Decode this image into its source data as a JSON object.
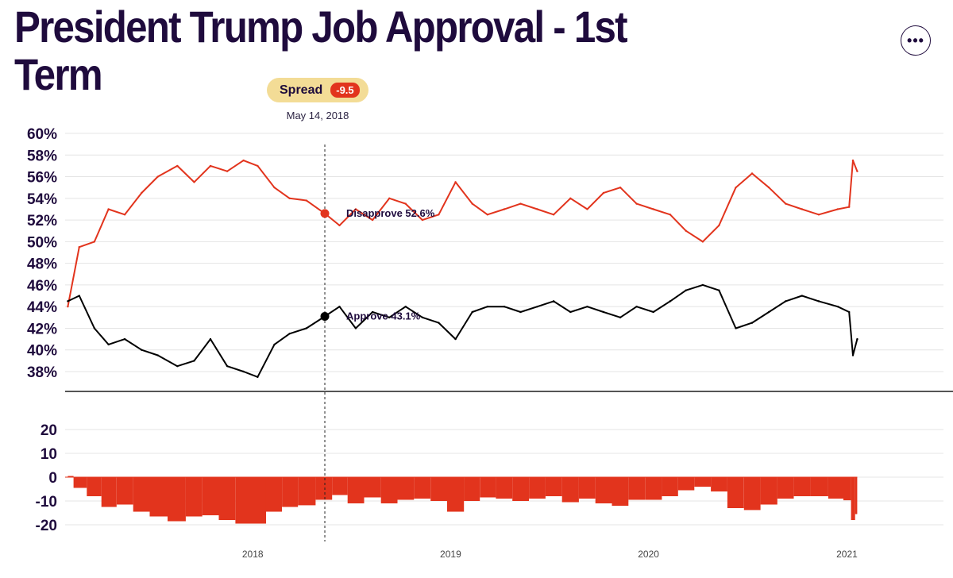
{
  "header": {
    "title": "President Trump Job Approval - 1st Term",
    "more_button_label": "•••",
    "spread_label": "Spread",
    "spread_value": "-9.5",
    "hover_date": "May 14, 2018"
  },
  "colors": {
    "disapprove": "#e2341d",
    "approve": "#000000",
    "spread_bar": "#e2341d",
    "spread_pill": "#f3dc96",
    "title": "#1f0b3d",
    "grid": "#e4e4e4"
  },
  "icons": {
    "more": "ellipsis-icon"
  },
  "chart_data": [
    {
      "type": "line",
      "title": "",
      "xlabel": "",
      "ylabel": "",
      "ylim": [
        36,
        60
      ],
      "y_ticks": [
        "60%",
        "58%",
        "56%",
        "54%",
        "52%",
        "50%",
        "48%",
        "46%",
        "44%",
        "42%",
        "40%",
        "38%"
      ],
      "x_ticks": [
        "2018",
        "2019",
        "2020",
        "2021"
      ],
      "grid": true,
      "hover": {
        "date": "May 14, 2018",
        "disapprove_label": "Disapprove 52.6%",
        "approve_label": "Approve 43.1%",
        "disapprove": 52.6,
        "approve": 43.1
      },
      "x": [
        "2017-01-25",
        "2017-02-15",
        "2017-03-15",
        "2017-04-10",
        "2017-05-10",
        "2017-06-10",
        "2017-07-10",
        "2017-08-15",
        "2017-09-15",
        "2017-10-15",
        "2017-11-15",
        "2017-12-15",
        "2018-01-10",
        "2018-02-10",
        "2018-03-10",
        "2018-04-10",
        "2018-05-14",
        "2018-06-10",
        "2018-07-10",
        "2018-08-10",
        "2018-09-10",
        "2018-10-10",
        "2018-11-10",
        "2018-12-10",
        "2019-01-10",
        "2019-02-10",
        "2019-03-10",
        "2019-04-10",
        "2019-05-10",
        "2019-06-10",
        "2019-07-10",
        "2019-08-10",
        "2019-09-10",
        "2019-10-10",
        "2019-11-10",
        "2019-12-10",
        "2020-01-10",
        "2020-02-10",
        "2020-03-10",
        "2020-04-10",
        "2020-05-10",
        "2020-06-10",
        "2020-07-10",
        "2020-08-10",
        "2020-09-10",
        "2020-10-10",
        "2020-11-10",
        "2020-12-15",
        "2021-01-05",
        "2021-01-12",
        "2021-01-20"
      ],
      "series": [
        {
          "name": "Disapprove",
          "values": [
            44.0,
            49.5,
            50.0,
            53.0,
            52.5,
            54.5,
            56.0,
            57.0,
            55.5,
            57.0,
            56.5,
            57.5,
            57.0,
            55.0,
            54.0,
            53.8,
            52.6,
            51.5,
            53.0,
            52.0,
            54.0,
            53.5,
            52.0,
            52.5,
            55.5,
            53.5,
            52.5,
            53.0,
            53.5,
            53.0,
            52.5,
            54.0,
            53.0,
            54.5,
            55.0,
            53.5,
            53.0,
            52.5,
            51.0,
            50.0,
            51.5,
            55.0,
            56.3,
            55.0,
            53.5,
            53.0,
            52.5,
            53.0,
            53.2,
            57.5,
            56.5
          ]
        },
        {
          "name": "Approve",
          "values": [
            44.5,
            45.0,
            42.0,
            40.5,
            41.0,
            40.0,
            39.5,
            38.5,
            39.0,
            41.0,
            38.5,
            38.0,
            37.5,
            40.5,
            41.5,
            42.0,
            43.1,
            44.0,
            42.0,
            43.5,
            43.0,
            44.0,
            43.0,
            42.5,
            41.0,
            43.5,
            44.0,
            44.0,
            43.5,
            44.0,
            44.5,
            43.5,
            44.0,
            43.5,
            43.0,
            44.0,
            43.5,
            44.5,
            45.5,
            46.0,
            45.5,
            42.0,
            42.5,
            43.5,
            44.5,
            45.0,
            44.5,
            44.0,
            43.5,
            39.5,
            41.0
          ]
        }
      ]
    },
    {
      "type": "area",
      "title": "",
      "xlabel": "",
      "ylabel": "",
      "ylim": [
        -22,
        22
      ],
      "y_ticks": [
        "20",
        "10",
        "0",
        "-10",
        "-20"
      ],
      "x_ticks": [
        "2018",
        "2019",
        "2020",
        "2021"
      ],
      "grid": true,
      "series": [
        {
          "name": "",
          "values": [
            0.5,
            -4.5,
            -8.0,
            -12.5,
            -11.5,
            -14.5,
            -16.5,
            -18.5,
            -16.5,
            -16.0,
            -18.0,
            -19.5,
            -19.5,
            -14.5,
            -12.5,
            -11.8,
            -9.5,
            -7.5,
            -11.0,
            -8.5,
            -11.0,
            -9.5,
            -9.0,
            -10.0,
            -14.5,
            -10.0,
            -8.5,
            -9.0,
            -10.0,
            -9.0,
            -8.0,
            -10.5,
            -9.0,
            -11.0,
            -12.0,
            -9.5,
            -9.5,
            -8.0,
            -5.5,
            -4.0,
            -6.0,
            -13.0,
            -13.8,
            -11.5,
            -9.0,
            -8.0,
            -8.0,
            -9.0,
            -9.7,
            -18.0,
            -15.5
          ]
        }
      ]
    }
  ]
}
